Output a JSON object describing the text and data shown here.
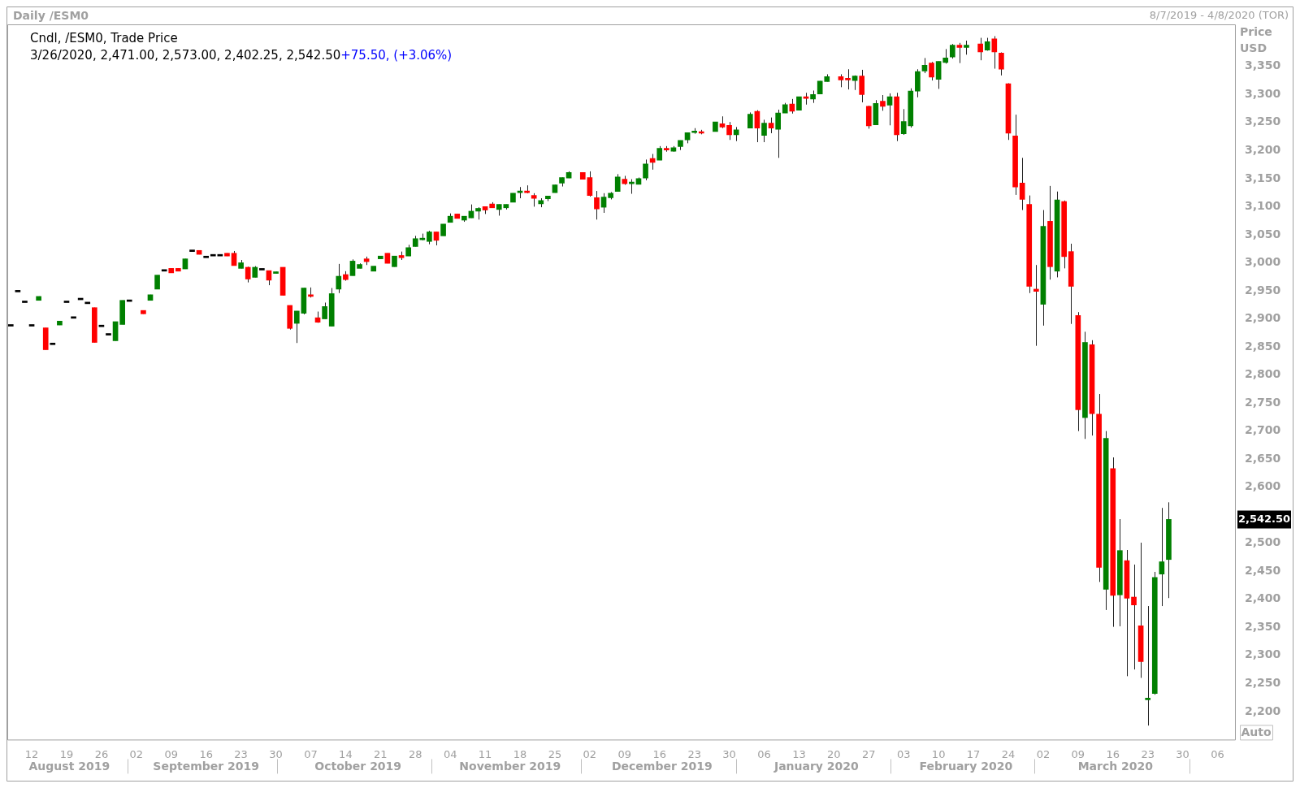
{
  "chart_data": {
    "type": "candlestick",
    "title": "Daily /ESM0",
    "subtitle": "8/7/2019 - 4/8/2020 (TOR)",
    "ylabel": "Price USD",
    "categories": [
      null,
      null,
      null,
      "12",
      null,
      null,
      null,
      null,
      "19",
      null,
      null,
      null,
      null,
      "26",
      null,
      null,
      null,
      null,
      "02",
      null,
      null,
      null,
      null,
      "09",
      null,
      null,
      null,
      null,
      "16",
      null,
      null,
      null,
      null,
      "23",
      null,
      null,
      null,
      null,
      "30",
      null,
      null,
      null,
      null,
      "07",
      null,
      null,
      null,
      null,
      "14",
      null,
      null,
      null,
      null,
      "21",
      null,
      null,
      null,
      null,
      "28",
      null,
      null,
      null,
      null,
      "04",
      null,
      null,
      null,
      null,
      "11",
      null,
      null,
      null,
      null,
      "18",
      null,
      null,
      null,
      null,
      "25",
      null,
      null,
      null,
      null,
      "02",
      null,
      null,
      null,
      null,
      "09",
      null,
      null,
      null,
      null,
      "16",
      null,
      null,
      null,
      null,
      "23",
      null,
      null,
      null,
      null,
      "30",
      null,
      null,
      null,
      null,
      "06",
      null,
      null,
      null,
      null,
      "13",
      null,
      null,
      null,
      null,
      "20",
      null,
      null,
      null,
      null,
      "27",
      null,
      null,
      null,
      null,
      "03",
      null,
      null,
      null,
      null,
      "10",
      null,
      null,
      null,
      null,
      "17",
      null,
      null,
      null,
      null,
      "24",
      null,
      null,
      null,
      null,
      "02",
      null,
      null,
      null,
      null,
      "09",
      null,
      null,
      null,
      null,
      "16",
      null,
      null,
      null,
      null,
      "23",
      null,
      null,
      null,
      null,
      "30",
      null,
      null,
      null,
      null,
      "06",
      null,
      null
    ],
    "ohlc": [
      [
        2887,
        2887,
        2887,
        2887
      ],
      [
        2948,
        2948,
        2948,
        2948
      ],
      [
        2929,
        2929,
        2929,
        2929
      ],
      [
        2887,
        2887,
        2887,
        2887
      ],
      [
        2933,
        2940,
        2933,
        2940
      ],
      [
        2884,
        2884,
        2845,
        2845
      ],
      [
        2854,
        2854,
        2854,
        2854
      ],
      [
        2889,
        2896,
        2889,
        2896
      ],
      [
        2929,
        2929,
        2929,
        2929
      ],
      [
        2901,
        2901,
        2901,
        2901
      ],
      [
        2934,
        2934,
        2934,
        2934
      ],
      [
        2927,
        2927,
        2927,
        2927
      ],
      [
        2920,
        2920,
        2858,
        2858
      ],
      [
        2886,
        2886,
        2886,
        2886
      ],
      [
        2871,
        2871,
        2871,
        2871
      ],
      [
        2861,
        2895,
        2861,
        2895
      ],
      [
        2890,
        2933,
        2890,
        2933
      ],
      [
        2931,
        2931,
        2931,
        2931
      ],
      null,
      [
        2915,
        2915,
        2909,
        2909
      ],
      [
        2933,
        2943,
        2933,
        2943
      ],
      [
        2953,
        2978,
        2953,
        2978
      ],
      [
        2985,
        2985,
        2985,
        2985
      ],
      [
        2990,
        2990,
        2982,
        2982
      ],
      [
        2990,
        2990,
        2985,
        2985
      ],
      [
        2989,
        3007,
        2989,
        3007
      ],
      [
        3020,
        3020,
        3020,
        3020
      ],
      [
        3022,
        3022,
        3015,
        3015
      ],
      [
        3009,
        3009,
        3009,
        3009
      ],
      [
        3012,
        3012,
        3012,
        3012
      ],
      [
        3012,
        3012,
        3012,
        3012
      ],
      [
        3017,
        3017,
        3012,
        3012
      ],
      [
        3017,
        3021,
        2995,
        2995
      ],
      [
        2990,
        3005,
        2990,
        3000
      ],
      [
        2992,
        2993,
        2965,
        2971
      ],
      [
        2974,
        2994,
        2974,
        2992
      ],
      [
        2987,
        2987,
        2987,
        2987
      ],
      [
        2986,
        2986,
        2960,
        2969
      ],
      [
        2981,
        2984,
        2981,
        2984
      ],
      [
        2992,
        2992,
        2942,
        2942
      ],
      [
        2924,
        2924,
        2881,
        2883
      ],
      [
        2892,
        2914,
        2857,
        2914
      ],
      [
        2910,
        2955,
        2908,
        2955
      ],
      [
        2943,
        2956,
        2938,
        2940
      ],
      [
        2902,
        2913,
        2893,
        2894
      ],
      [
        2900,
        2929,
        2900,
        2922
      ],
      [
        2887,
        2955,
        2887,
        2945
      ],
      [
        2953,
        2998,
        2946,
        2976
      ],
      [
        2979,
        2985,
        2968,
        2970
      ],
      [
        2977,
        3006,
        2977,
        3003
      ],
      [
        2990,
        2999,
        2990,
        2997
      ],
      [
        3007,
        3011,
        2996,
        3002
      ],
      [
        2985,
        2994,
        2985,
        2994
      ],
      [
        3007,
        3012,
        3007,
        3012
      ],
      [
        3017,
        3017,
        2999,
        2999
      ],
      [
        2993,
        3012,
        2993,
        3012
      ],
      [
        3013,
        3020,
        3005,
        3009
      ],
      [
        3012,
        3032,
        3012,
        3027
      ],
      [
        3029,
        3048,
        3029,
        3043
      ],
      [
        3041,
        3052,
        3040,
        3043
      ],
      [
        3038,
        3057,
        3033,
        3055
      ],
      [
        3055,
        3055,
        3031,
        3040
      ],
      [
        3048,
        3069,
        3048,
        3069
      ],
      [
        3072,
        3088,
        3072,
        3083
      ],
      [
        3087,
        3087,
        3079,
        3079
      ],
      [
        3076,
        3083,
        3073,
        3083
      ],
      [
        3080,
        3104,
        3080,
        3092
      ],
      [
        3092,
        3099,
        3077,
        3097
      ],
      [
        3100,
        3100,
        3087,
        3094
      ],
      [
        3105,
        3108,
        3098,
        3098
      ],
      [
        3095,
        3104,
        3084,
        3104
      ],
      [
        3098,
        3104,
        3095,
        3104
      ],
      [
        3108,
        3124,
        3108,
        3124
      ],
      [
        3125,
        3135,
        3115,
        3128
      ],
      [
        3128,
        3138,
        3124,
        3125
      ],
      [
        3120,
        3124,
        3100,
        3115
      ],
      [
        3105,
        3115,
        3099,
        3111
      ],
      [
        3114,
        3119,
        3110,
        3119
      ],
      [
        3125,
        3139,
        3125,
        3139
      ],
      [
        3142,
        3152,
        3136,
        3152
      ],
      [
        3151,
        3163,
        3151,
        3161
      ],
      null,
      [
        3161,
        3161,
        3149,
        3149
      ],
      [
        3152,
        3163,
        3118,
        3120
      ],
      [
        3116,
        3128,
        3077,
        3096
      ],
      [
        3099,
        3124,
        3089,
        3117
      ],
      [
        3116,
        3126,
        3113,
        3124
      ],
      [
        3127,
        3158,
        3127,
        3153
      ],
      [
        3149,
        3155,
        3139,
        3141
      ],
      [
        3141,
        3149,
        3123,
        3143
      ],
      [
        3140,
        3152,
        3140,
        3150
      ],
      [
        3151,
        3184,
        3147,
        3176
      ],
      [
        3186,
        3194,
        3166,
        3179
      ],
      [
        3183,
        3208,
        3183,
        3204
      ],
      [
        3203,
        3208,
        3198,
        3201
      ],
      [
        3199,
        3208,
        3198,
        3205
      ],
      [
        3207,
        3218,
        3201,
        3218
      ],
      [
        3219,
        3232,
        3213,
        3232
      ],
      [
        3232,
        3240,
        3230,
        3234
      ],
      [
        3233,
        3237,
        3229,
        3231
      ],
      null,
      [
        3234,
        3251,
        3234,
        3251
      ],
      [
        3248,
        3261,
        3240,
        3242
      ],
      [
        3245,
        3251,
        3219,
        3228
      ],
      [
        3228,
        3242,
        3217,
        3237
      ],
      null,
      [
        3240,
        3268,
        3240,
        3265
      ],
      [
        3270,
        3272,
        3215,
        3240
      ],
      [
        3227,
        3255,
        3215,
        3249
      ],
      [
        3249,
        3259,
        3231,
        3240
      ],
      [
        3238,
        3273,
        3187,
        3267
      ],
      [
        3267,
        3285,
        3267,
        3282
      ],
      [
        3283,
        3292,
        3266,
        3270
      ],
      [
        3272,
        3296,
        3272,
        3296
      ],
      [
        3296,
        3303,
        3282,
        3293
      ],
      [
        3292,
        3307,
        3285,
        3300
      ],
      [
        3301,
        3324,
        3301,
        3324
      ],
      [
        3323,
        3336,
        3323,
        3332
      ],
      null,
      [
        3332,
        3336,
        3313,
        3326
      ],
      [
        3328,
        3345,
        3309,
        3326
      ],
      [
        3325,
        3334,
        3308,
        3333
      ],
      [
        3333,
        3344,
        3286,
        3300
      ],
      [
        3279,
        3280,
        3239,
        3244
      ],
      [
        3246,
        3290,
        3246,
        3284
      ],
      [
        3288,
        3299,
        3271,
        3279
      ],
      [
        3281,
        3302,
        3245,
        3296
      ],
      [
        3296,
        3303,
        3217,
        3228
      ],
      [
        3230,
        3274,
        3228,
        3252
      ],
      [
        3244,
        3311,
        3241,
        3306
      ],
      [
        3306,
        3345,
        3295,
        3341
      ],
      [
        3342,
        3365,
        3338,
        3352
      ],
      [
        3356,
        3358,
        3325,
        3331
      ],
      [
        3327,
        3359,
        3310,
        3359
      ],
      [
        3357,
        3381,
        3355,
        3365
      ],
      [
        3367,
        3390,
        3364,
        3388
      ],
      [
        3388,
        3392,
        3356,
        3384
      ],
      [
        3384,
        3396,
        3371,
        3388
      ],
      null,
      [
        3390,
        3401,
        3361,
        3376
      ],
      [
        3379,
        3401,
        3378,
        3394
      ],
      [
        3399,
        3404,
        3346,
        3376
      ],
      [
        3374,
        3375,
        3334,
        3345
      ],
      [
        3319,
        3320,
        3219,
        3231
      ],
      [
        3226,
        3264,
        3121,
        3135
      ],
      [
        3142,
        3187,
        3094,
        3113
      ],
      [
        3104,
        3120,
        2946,
        2958
      ],
      [
        2953,
        2996,
        2852,
        2949
      ],
      [
        2926,
        3094,
        2888,
        3065
      ],
      [
        3074,
        3137,
        2970,
        2993
      ],
      [
        2985,
        3127,
        2974,
        3112
      ],
      [
        3109,
        3111,
        2990,
        3011
      ],
      [
        3020,
        3034,
        2891,
        2958
      ],
      [
        2906,
        2912,
        2700,
        2738
      ],
      [
        2724,
        2877,
        2686,
        2858
      ],
      [
        2854,
        2862,
        2692,
        2731
      ],
      [
        2730,
        2766,
        2431,
        2457
      ],
      [
        2418,
        2700,
        2381,
        2687
      ],
      [
        2633,
        2653,
        2351,
        2407
      ],
      [
        2408,
        2543,
        2352,
        2487
      ],
      [
        2469,
        2488,
        2263,
        2402
      ],
      [
        2404,
        2462,
        2275,
        2390
      ],
      [
        2353,
        2501,
        2260,
        2289
      ],
      [
        2221,
        2388,
        2175,
        2223
      ],
      [
        2232,
        2449,
        2230,
        2439
      ],
      [
        2445,
        2563,
        2388,
        2467
      ],
      [
        2471,
        2573,
        2402.25,
        2542.5
      ],
      null,
      null,
      null,
      null,
      null,
      null,
      null,
      null,
      null
    ],
    "colors": [
      "#000000",
      "#000000",
      "#000000",
      "#000000",
      "#008000",
      "#ff0000",
      "#000000",
      "#008000",
      "#000000",
      "#000000",
      "#000000",
      "#000000",
      "#ff0000",
      "#000000",
      "#000000",
      "#008000",
      "#008000",
      "#000000",
      null,
      "#ff0000",
      "#008000",
      "#008000",
      "#000000",
      "#ff0000",
      "#ff0000",
      "#008000",
      "#000000",
      "#ff0000",
      "#000000",
      "#000000",
      "#000000",
      "#ff0000",
      "#ff0000",
      "#008000",
      "#ff0000",
      "#008000",
      "#000000",
      "#ff0000",
      "#008000",
      "#ff0000",
      "#ff0000",
      "#008000",
      "#008000",
      "#ff0000",
      "#ff0000",
      "#008000",
      "#008000",
      "#008000",
      "#ff0000",
      "#008000",
      "#008000",
      "#ff0000",
      "#008000",
      "#008000",
      "#ff0000",
      "#008000",
      "#ff0000",
      "#008000",
      "#008000",
      "#008000",
      "#008000",
      "#ff0000",
      "#008000",
      "#008000",
      "#ff0000",
      "#008000",
      "#008000",
      "#008000",
      "#ff0000",
      "#ff0000",
      "#008000",
      "#008000",
      "#008000",
      "#008000",
      "#ff0000",
      "#ff0000",
      "#008000",
      "#008000",
      "#008000",
      "#008000",
      "#008000",
      null,
      "#ff0000",
      "#ff0000",
      "#ff0000",
      "#008000",
      "#008000",
      "#008000",
      "#ff0000",
      "#008000",
      "#008000",
      "#008000",
      "#ff0000",
      "#008000",
      "#ff0000",
      "#008000",
      "#008000",
      "#008000",
      "#008000",
      "#ff0000",
      null,
      "#008000",
      "#ff0000",
      "#ff0000",
      "#008000",
      null,
      "#008000",
      "#ff0000",
      "#008000",
      "#ff0000",
      "#008000",
      "#008000",
      "#ff0000",
      "#008000",
      "#ff0000",
      "#008000",
      "#008000",
      "#008000",
      null,
      "#ff0000",
      "#ff0000",
      "#008000",
      "#ff0000",
      "#ff0000",
      "#008000",
      "#ff0000",
      "#008000",
      "#ff0000",
      "#008000",
      "#008000",
      "#008000",
      "#008000",
      "#ff0000",
      "#008000",
      "#008000",
      "#008000",
      "#ff0000",
      "#008000",
      null,
      "#ff0000",
      "#008000",
      "#ff0000",
      "#ff0000",
      "#ff0000",
      "#ff0000",
      "#ff0000",
      "#ff0000",
      "#ff0000",
      "#008000",
      "#ff0000",
      "#008000",
      "#ff0000",
      "#ff0000",
      "#ff0000",
      "#008000",
      "#ff0000",
      "#ff0000",
      "#008000",
      "#ff0000",
      "#008000",
      "#ff0000",
      "#ff0000",
      "#ff0000",
      "#008000",
      "#008000",
      "#008000",
      "#008000",
      null,
      null,
      null,
      null,
      null,
      null,
      null,
      null,
      null
    ],
    "ylim": [
      2150,
      3425
    ],
    "yticks": [
      {
        "value": 2200,
        "label": "2,200"
      },
      {
        "value": 2250,
        "label": "2,250"
      },
      {
        "value": 2300,
        "label": "2,300"
      },
      {
        "value": 2350,
        "label": "2,350"
      },
      {
        "value": 2400,
        "label": "2,400"
      },
      {
        "value": 2450,
        "label": "2,450"
      },
      {
        "value": 2500,
        "label": "2,500"
      },
      {
        "value": 2600,
        "label": "2,600"
      },
      {
        "value": 2650,
        "label": "2,650"
      },
      {
        "value": 2700,
        "label": "2,700"
      },
      {
        "value": 2750,
        "label": "2,750"
      },
      {
        "value": 2800,
        "label": "2,800"
      },
      {
        "value": 2850,
        "label": "2,850"
      },
      {
        "value": 2900,
        "label": "2,900"
      },
      {
        "value": 2950,
        "label": "2,950"
      },
      {
        "value": 3000,
        "label": "3,000"
      },
      {
        "value": 3050,
        "label": "3,050"
      },
      {
        "value": 3100,
        "label": "3,100"
      },
      {
        "value": 3150,
        "label": "3,150"
      },
      {
        "value": 3200,
        "label": "3,200"
      },
      {
        "value": 3250,
        "label": "3,250"
      },
      {
        "value": 3300,
        "label": "3,300"
      },
      {
        "value": 3350,
        "label": "3,350"
      }
    ],
    "annotations": [
      "Cndl, /ESM0, Trade Price",
      "3/26/2020, 2,471.00, 2,573.00, 2,402.25, 2,542.50",
      "+75.50, (+3.06%)",
      "Auto",
      "August 2019",
      "September 2019",
      "October 2019",
      "November 2019",
      "December 2019",
      "January 2020",
      "February 2020",
      "March 2020",
      "2,542.50"
    ],
    "grid": false
  }
}
